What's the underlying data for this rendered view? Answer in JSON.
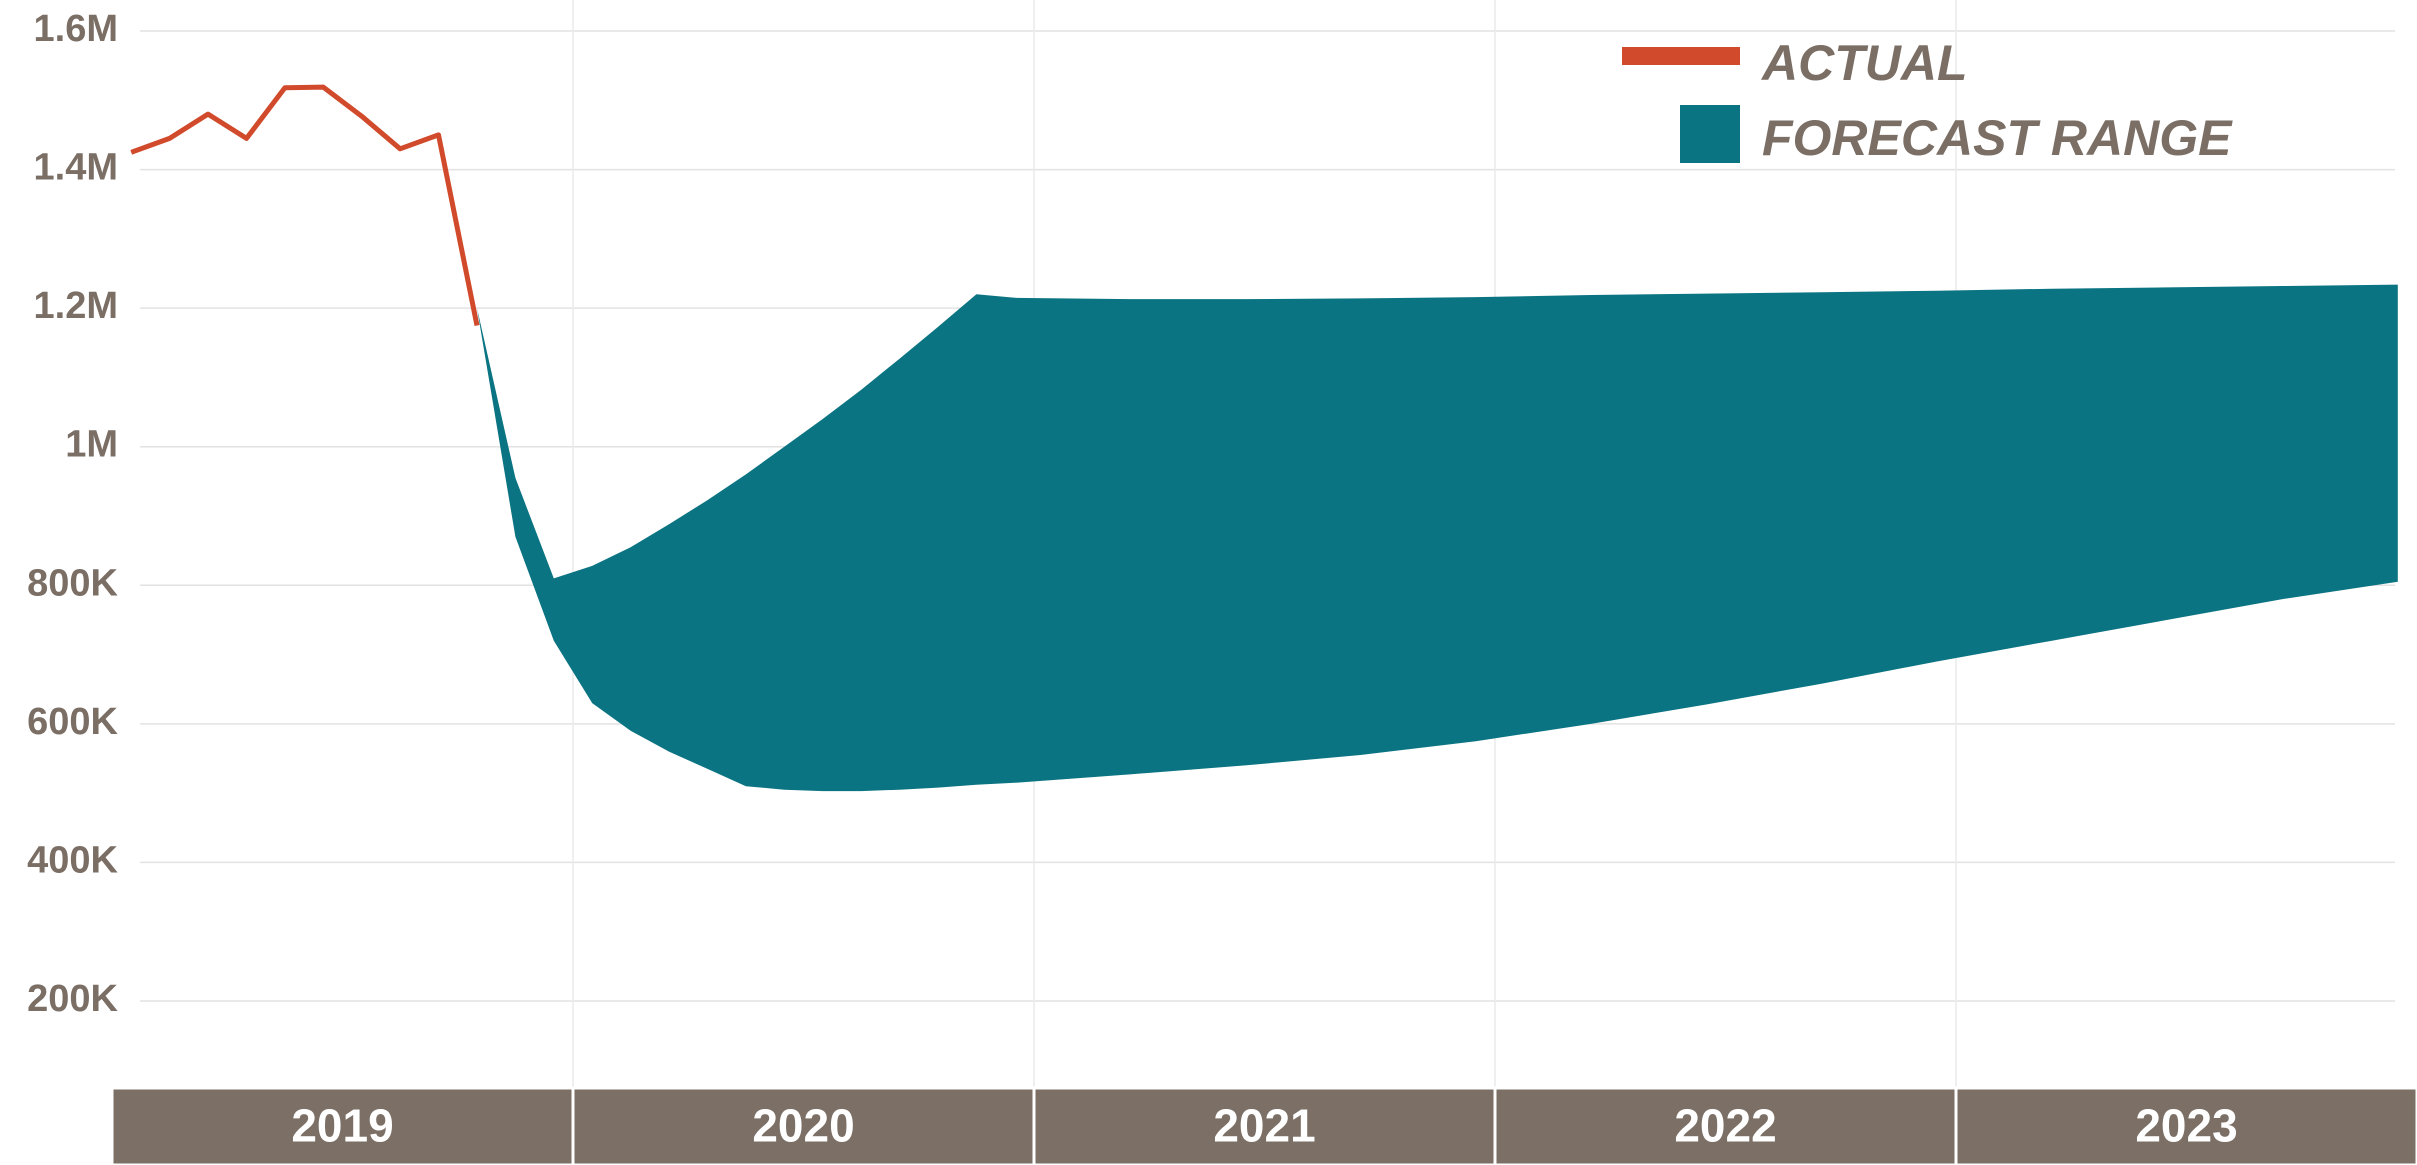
{
  "chart_data": {
    "type": "area",
    "title": "",
    "xlabel": "",
    "ylabel": "",
    "ylim": [
      50000,
      1600000
    ],
    "grid": true,
    "legend_position": "top-right",
    "y_tick_labels": [
      "200K",
      "400K",
      "600K",
      "800K",
      "1M",
      "1.2M",
      "1.4M",
      "1.6M"
    ],
    "y_tick_values": [
      200000,
      400000,
      600000,
      800000,
      1000000,
      1200000,
      1400000,
      1600000
    ],
    "x_range": [
      "2019-01",
      "2023-12"
    ],
    "year_bands": [
      {
        "label": "2019",
        "start": "2019-01",
        "end": "2019-12"
      },
      {
        "label": "2020",
        "start": "2020-01",
        "end": "2020-12"
      },
      {
        "label": "2021",
        "start": "2021-01",
        "end": "2021-12"
      },
      {
        "label": "2022",
        "start": "2022-01",
        "end": "2022-12"
      },
      {
        "label": "2023",
        "start": "2023-01",
        "end": "2023-12"
      }
    ],
    "series": [
      {
        "name": "ACTUAL",
        "type": "line",
        "color": "#d14a2b",
        "x": [
          "2019-01",
          "2019-02",
          "2019-03",
          "2019-04",
          "2019-05",
          "2019-06",
          "2019-07",
          "2019-08",
          "2019-09",
          "2019-10"
        ],
        "y": [
          1425000,
          1445000,
          1480000,
          1445000,
          1518000,
          1519000,
          1477000,
          1430000,
          1450000,
          1175000
        ]
      },
      {
        "name": "FORECAST RANGE",
        "type": "range",
        "color": "#0b7482",
        "x": [
          "2019-10",
          "2019-11",
          "2019-12",
          "2020-01",
          "2020-02",
          "2020-03",
          "2020-04",
          "2020-05",
          "2020-06",
          "2020-07",
          "2020-08",
          "2020-09",
          "2020-10",
          "2020-11",
          "2020-12",
          "2021-03",
          "2021-06",
          "2021-09",
          "2021-12",
          "2022-03",
          "2022-06",
          "2022-09",
          "2022-12",
          "2023-03",
          "2023-06",
          "2023-09",
          "2023-12"
        ],
        "low": [
          1200000,
          870000,
          720000,
          630000,
          590000,
          560000,
          535000,
          510000,
          505000,
          503000,
          503000,
          505000,
          508000,
          512000,
          515000,
          527000,
          540000,
          555000,
          575000,
          600000,
          628000,
          658000,
          690000,
          720000,
          750000,
          780000,
          805000
        ],
        "high": [
          1200000,
          955000,
          810000,
          828000,
          855000,
          888000,
          923000,
          960000,
          1000000,
          1040000,
          1082000,
          1127000,
          1173000,
          1220000,
          1215000,
          1213000,
          1213000,
          1214000,
          1216000,
          1219000,
          1221000,
          1223000,
          1225000,
          1228000,
          1230000,
          1232000,
          1234000
        ]
      }
    ]
  }
}
